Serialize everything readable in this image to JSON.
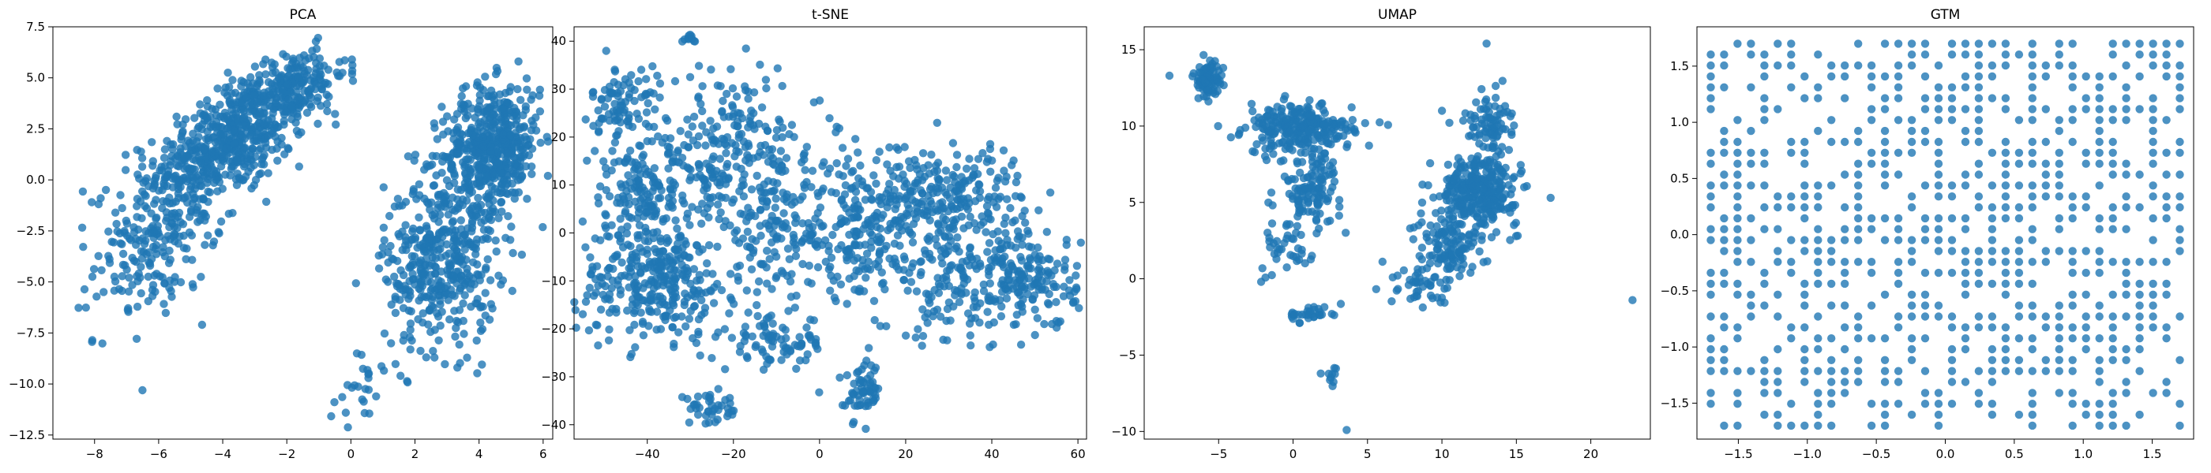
{
  "figure": {
    "marker_color": "#1f77b4",
    "marker_opacity": 0.8,
    "background": "#ffffff"
  },
  "chart_data": [
    {
      "type": "scatter",
      "title": "PCA",
      "xlabel": "",
      "ylabel": "",
      "xlim": [
        -9.3,
        6.3
      ],
      "ylim": [
        -12.7,
        7.5
      ],
      "xticks": [
        -8,
        -6,
        -4,
        -2,
        0,
        2,
        4,
        6
      ],
      "yticks": [
        -12.5,
        -10.0,
        -7.5,
        -5.0,
        -2.5,
        0.0,
        2.5,
        5.0,
        7.5
      ],
      "grid": false,
      "legend": "none",
      "clusters": [
        {
          "cx": -3.7,
          "cy": 2.0,
          "sx": 1.4,
          "sy": 1.6,
          "n": 520,
          "rot": 0.6
        },
        {
          "cx": -6.0,
          "cy": -2.5,
          "sx": 1.3,
          "sy": 2.5,
          "n": 260,
          "rot": 0.7
        },
        {
          "cx": -1.8,
          "cy": 4.6,
          "sx": 0.9,
          "sy": 0.9,
          "n": 180,
          "rot": 0.4
        },
        {
          "cx": 4.4,
          "cy": 1.6,
          "sx": 0.8,
          "sy": 1.6,
          "n": 520,
          "rot": 0.3
        },
        {
          "cx": 2.8,
          "cy": -4.0,
          "sx": 0.9,
          "sy": 2.2,
          "n": 420,
          "rot": 0.2
        },
        {
          "cx": 0.3,
          "cy": -10.3,
          "sx": 0.5,
          "sy": 1.0,
          "n": 25,
          "rot": 0.3
        }
      ]
    },
    {
      "type": "scatter",
      "title": "t-SNE",
      "xlabel": "",
      "ylabel": "",
      "xlim": [
        -57,
        62
      ],
      "ylim": [
        -43,
        43
      ],
      "xticks": [
        -40,
        -20,
        0,
        20,
        40,
        60
      ],
      "yticks": [
        -40,
        -30,
        -20,
        -10,
        0,
        10,
        20,
        30,
        40
      ],
      "grid": false,
      "legend": "none",
      "clusters": [
        {
          "cx": -45,
          "cy": 27,
          "sx": 4,
          "sy": 4,
          "n": 90,
          "rot": 0
        },
        {
          "cx": -30,
          "cy": 40.5,
          "sx": 1,
          "sy": 0.5,
          "n": 10,
          "rot": 0
        },
        {
          "cx": -38,
          "cy": -10,
          "sx": 9,
          "sy": 6,
          "n": 320,
          "rot": 0
        },
        {
          "cx": -40,
          "cy": 8,
          "sx": 8,
          "sy": 6,
          "n": 180,
          "rot": 0
        },
        {
          "cx": -20,
          "cy": 18,
          "sx": 10,
          "sy": 8,
          "n": 200,
          "rot": 0
        },
        {
          "cx": -10,
          "cy": 2,
          "sx": 8,
          "sy": 7,
          "n": 150,
          "rot": 0
        },
        {
          "cx": -10,
          "cy": -23,
          "sx": 6,
          "sy": 3,
          "n": 80,
          "rot": 0
        },
        {
          "cx": -25,
          "cy": -37,
          "sx": 4,
          "sy": 1.5,
          "n": 40,
          "rot": 0
        },
        {
          "cx": 10,
          "cy": -33,
          "sx": 2,
          "sy": 3,
          "n": 60,
          "rot": 0
        },
        {
          "cx": 10,
          "cy": 0,
          "sx": 7,
          "sy": 7,
          "n": 200,
          "rot": 0
        },
        {
          "cx": 30,
          "cy": 7,
          "sx": 9,
          "sy": 6,
          "n": 260,
          "rot": 0
        },
        {
          "cx": 48,
          "cy": -10,
          "sx": 6,
          "sy": 5,
          "n": 180,
          "rot": 0
        },
        {
          "cx": 30,
          "cy": -12,
          "sx": 6,
          "sy": 6,
          "n": 100,
          "rot": 0
        }
      ]
    },
    {
      "type": "scatter",
      "title": "UMAP",
      "xlabel": "",
      "ylabel": "",
      "xlim": [
        -10.0,
        24.0
      ],
      "ylim": [
        -10.5,
        16.5
      ],
      "xticks": [
        -5,
        0,
        5,
        10,
        15,
        20
      ],
      "yticks": [
        -10,
        -5,
        0,
        5,
        10,
        15
      ],
      "grid": false,
      "legend": "none",
      "clusters": [
        {
          "cx": -5.7,
          "cy": 13.0,
          "sx": 0.5,
          "sy": 0.6,
          "n": 80,
          "rot": 0
        },
        {
          "cx": 0.5,
          "cy": 9.8,
          "sx": 1.8,
          "sy": 0.8,
          "n": 260,
          "rot": 0
        },
        {
          "cx": 1.2,
          "cy": 6.0,
          "sx": 1.0,
          "sy": 1.2,
          "n": 120,
          "rot": 0
        },
        {
          "cx": 12.5,
          "cy": 5.8,
          "sx": 1.3,
          "sy": 1.1,
          "n": 300,
          "rot": 0
        },
        {
          "cx": 10.5,
          "cy": 2.0,
          "sx": 1.2,
          "sy": 1.2,
          "n": 120,
          "rot": 0
        },
        {
          "cx": 13.0,
          "cy": 10.2,
          "sx": 0.8,
          "sy": 1.0,
          "n": 80,
          "rot": 0
        },
        {
          "cx": 8.5,
          "cy": -0.5,
          "sx": 1.0,
          "sy": 0.8,
          "n": 40,
          "rot": 0
        },
        {
          "cx": -0.2,
          "cy": 2.2,
          "sx": 0.8,
          "sy": 1.2,
          "n": 40,
          "rot": 0
        },
        {
          "cx": 1.2,
          "cy": -2.3,
          "sx": 1.0,
          "sy": 0.3,
          "n": 30,
          "rot": 0
        },
        {
          "cx": 2.5,
          "cy": -6.3,
          "sx": 0.2,
          "sy": 0.3,
          "n": 10,
          "rot": 0
        }
      ],
      "points": [
        [
          22.8,
          -1.4
        ],
        [
          3.6,
          -9.9
        ],
        [
          -8.3,
          13.3
        ],
        [
          13.0,
          15.4
        ],
        [
          17.3,
          5.3
        ],
        [
          10.0,
          11.0
        ]
      ]
    },
    {
      "type": "scatter",
      "title": "GTM",
      "xlabel": "",
      "ylabel": "",
      "xlim": [
        -1.8,
        1.8
      ],
      "ylim": [
        -1.82,
        1.85
      ],
      "xticks": [
        -1.5,
        -1.0,
        -0.5,
        0.0,
        0.5,
        1.0,
        1.5
      ],
      "yticks": [
        -1.5,
        -1.0,
        -0.5,
        0.0,
        0.5,
        1.0,
        1.5
      ],
      "grid": false,
      "legend": "none",
      "grid_nodes": 36,
      "grid_min": -1.7,
      "grid_max": 1.7,
      "fill_fraction": 0.55
    }
  ]
}
